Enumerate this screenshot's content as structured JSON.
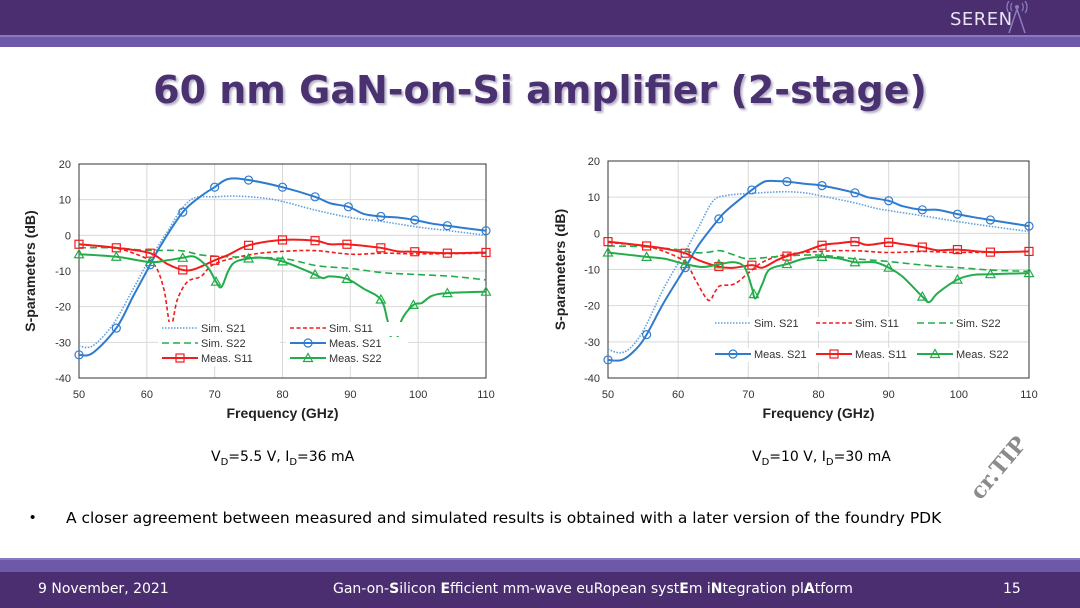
{
  "header": {
    "logo_text": "SEREN"
  },
  "title": "60 nm GaN-on-Si amplifier (2-stage)",
  "captions": [
    {
      "v": "V",
      "vsub": "D",
      "vval": "=5.5 V, I",
      "isub": "D",
      "ival": "=36 mA"
    },
    {
      "v": "V",
      "vsub": "D",
      "vval": "=10 V, I",
      "isub": "D",
      "ival": "=30 mA"
    }
  ],
  "bullet": "A closer agreement between measured and simulated results is obtained with a later version of the foundry PDK",
  "watermark": "cr.TIP",
  "footer": {
    "date": "9 November, 2021",
    "project_parts": [
      [
        "Gan-on-",
        false
      ],
      [
        "S",
        true
      ],
      [
        "ilicon ",
        false
      ],
      [
        "E",
        true
      ],
      [
        "fficient mm-wave euR",
        false
      ],
      [
        "opean syst",
        false
      ],
      [
        "E",
        true
      ],
      [
        "m i",
        false
      ],
      [
        "N",
        true
      ],
      [
        "tegration pl",
        false
      ],
      [
        "A",
        true
      ],
      [
        "tform",
        false
      ]
    ],
    "page": "15"
  },
  "colors": {
    "blue": "#2e7bcf",
    "blue_light": "#5fa0dc",
    "red": "#f21c1c",
    "green": "#22ad4a",
    "purple": "#4a2e6f"
  },
  "chart_data": [
    {
      "type": "line",
      "xlabel": "Frequency (GHz)",
      "ylabel": "S-parameters (dB)",
      "xlim": [
        50,
        110
      ],
      "ylim": [
        -40,
        20
      ],
      "xticks": [
        50,
        60,
        70,
        80,
        90,
        100,
        110
      ],
      "yticks": [
        20,
        10,
        0,
        -10,
        -20,
        -30,
        -40
      ],
      "grid": true,
      "legend_order": [
        "Sim. S21",
        "Sim. S11",
        "Sim. S22",
        "Meas. S21",
        "Meas. S11",
        "Meas. S22"
      ],
      "series": [
        {
          "name": "Sim. S21",
          "style": "dotted",
          "color": "#5fa0dc",
          "marker": null,
          "x": [
            50,
            52,
            55,
            58,
            60,
            63,
            65,
            67,
            70,
            73,
            77,
            80,
            85,
            90,
            95,
            100,
            105,
            110
          ],
          "y": [
            -31,
            -31,
            -25,
            -15,
            -8,
            1,
            7,
            10.5,
            10.8,
            11,
            10.5,
            9.5,
            7,
            5,
            3.8,
            2.3,
            1.2,
            0
          ]
        },
        {
          "name": "Sim. S11",
          "style": "dashed",
          "color": "#f21c1c",
          "marker": null,
          "x": [
            50,
            55,
            58,
            61,
            62.5,
            63.5,
            64.5,
            66,
            68,
            70,
            75,
            80,
            85,
            90,
            95,
            100,
            110
          ],
          "y": [
            -2.5,
            -3.5,
            -5,
            -8,
            -15,
            -25.5,
            -18,
            -13,
            -11.5,
            -8,
            -5.5,
            -4.5,
            -4.3,
            -5.3,
            -5,
            -5.2,
            -5
          ]
        },
        {
          "name": "Sim. S22",
          "style": "longdash",
          "color": "#22ad4a",
          "marker": null,
          "x": [
            50,
            55,
            60,
            65,
            68,
            72,
            80,
            85,
            90,
            95,
            100,
            105,
            110
          ],
          "y": [
            -3.5,
            -3.5,
            -4.2,
            -4.3,
            -5.5,
            -6,
            -6.5,
            -8.5,
            -9.3,
            -10.5,
            -11,
            -11.5,
            -12.5
          ]
        },
        {
          "name": "Meas. S21",
          "style": "solid",
          "color": "#2e7bcf",
          "marker": "circle",
          "x": [
            50,
            52,
            55.5,
            58,
            60,
            62,
            65.3,
            68,
            70,
            72,
            75,
            80,
            84.8,
            87,
            89.7,
            92,
            94.5,
            97,
            99.5,
            102,
            104.3,
            107,
            110
          ],
          "y": [
            -33.5,
            -33,
            -26,
            -17,
            -10,
            -3,
            6.5,
            11,
            13.5,
            15.8,
            15.5,
            13.5,
            10.8,
            9,
            8,
            6,
            5.3,
            5,
            4.3,
            3.3,
            2.7,
            2,
            1.3
          ],
          "markers_x": [
            50,
            55.5,
            60.5,
            65.3,
            70,
            75,
            80,
            84.8,
            89.7,
            94.5,
            99.5,
            104.3,
            110
          ]
        },
        {
          "name": "Meas. S11",
          "style": "solid",
          "color": "#f21c1c",
          "marker": "square",
          "x": [
            50,
            55.5,
            60.5,
            63,
            65.3,
            67,
            70,
            72,
            75,
            80,
            84.8,
            87,
            89.5,
            94.5,
            97,
            99.5,
            104.3,
            110
          ],
          "y": [
            -2.5,
            -3.5,
            -5,
            -8,
            -9.7,
            -9.5,
            -7,
            -5.5,
            -2.8,
            -1.3,
            -1.5,
            -2.5,
            -2.5,
            -3.5,
            -4.5,
            -4.6,
            -5,
            -4.8
          ],
          "markers_x": [
            50,
            55.5,
            60.5,
            65.3,
            70,
            75,
            80,
            84.8,
            89.5,
            94.5,
            99.5,
            104.3,
            110
          ]
        },
        {
          "name": "Meas. S22",
          "style": "solid",
          "color": "#22ad4a",
          "marker": "triangle",
          "x": [
            50,
            55.5,
            60.5,
            63,
            65.3,
            67,
            69,
            70.2,
            71,
            72,
            73,
            75,
            77,
            80,
            83,
            84.8,
            86,
            87,
            89.5,
            92,
            94.5,
            95.5,
            96.5,
            97.5,
            99.3,
            100.5,
            102,
            104.3,
            110
          ],
          "y": [
            -5.3,
            -6,
            -7.5,
            -7,
            -6.3,
            -6,
            -9,
            -13,
            -14.5,
            -10,
            -7.5,
            -6.5,
            -6.3,
            -7.3,
            -9.5,
            -11,
            -12,
            -11.5,
            -12.2,
            -15,
            -18,
            -24,
            -32,
            -24,
            -19.5,
            -19,
            -17,
            -16.2,
            -15.8
          ],
          "markers_x": [
            50,
            55.5,
            60.5,
            65.3,
            70.2,
            75,
            80,
            84.8,
            89.5,
            94.5,
            99.3,
            104.3,
            110
          ]
        }
      ]
    },
    {
      "type": "line",
      "xlabel": "Frequency (GHz)",
      "ylabel": "S-parameters (dB)",
      "xlim": [
        50,
        110
      ],
      "ylim": [
        -40,
        20
      ],
      "xticks": [
        50,
        60,
        70,
        80,
        90,
        100,
        110
      ],
      "yticks": [
        20,
        10,
        0,
        -10,
        -20,
        -30,
        -40
      ],
      "grid": true,
      "legend_order": [
        "Sim. S21",
        "Sim. S11",
        "Sim. S22",
        "Meas. S21",
        "Meas. S11",
        "Meas. S22"
      ],
      "series": [
        {
          "name": "Sim. S21",
          "style": "dotted",
          "color": "#5fa0dc",
          "marker": null,
          "x": [
            50,
            51.5,
            53,
            55,
            58,
            61,
            63,
            65,
            67,
            70,
            75,
            78,
            80,
            85,
            88,
            90,
            95,
            100,
            105,
            110
          ],
          "y": [
            -32,
            -33,
            -32,
            -27,
            -15,
            -5,
            2,
            9,
            10.5,
            11,
            11.5,
            11.2,
            10.5,
            8.5,
            7,
            6.3,
            4.8,
            3.2,
            1.8,
            0.5
          ]
        },
        {
          "name": "Sim. S11",
          "style": "dashed",
          "color": "#f21c1c",
          "marker": null,
          "x": [
            50,
            55,
            58,
            61,
            62.5,
            64.3,
            65.3,
            66,
            68,
            70,
            72,
            75,
            80,
            85,
            90,
            95,
            100,
            110
          ],
          "y": [
            -2.5,
            -3.5,
            -5,
            -8,
            -13,
            -18.5,
            -16,
            -14.5,
            -14,
            -11,
            -8,
            -6,
            -5,
            -4.8,
            -5.3,
            -5,
            -5.3,
            -5
          ]
        },
        {
          "name": "Sim. S22",
          "style": "longdash",
          "color": "#22ad4a",
          "marker": null,
          "x": [
            50,
            55,
            60,
            62,
            64,
            66,
            68,
            70,
            75,
            80,
            85,
            90,
            95,
            100,
            105,
            110
          ],
          "y": [
            -3.5,
            -3.7,
            -4.5,
            -5.3,
            -5.3,
            -4.8,
            -6,
            -7,
            -6.3,
            -6,
            -7,
            -7.8,
            -8.8,
            -9.5,
            -10.2,
            -10.5
          ]
        },
        {
          "name": "Meas. S21",
          "style": "solid",
          "color": "#2e7bcf",
          "marker": "circle",
          "x": [
            50,
            52,
            54,
            55.5,
            58,
            61,
            63,
            65.8,
            67,
            70.5,
            72,
            73,
            75.5,
            78,
            80.5,
            85.2,
            87,
            90,
            92,
            94.8,
            97,
            99.8,
            102,
            104.5,
            110
          ],
          "y": [
            -35,
            -35,
            -32,
            -28,
            -19,
            -9.5,
            -3,
            4,
            6.5,
            12,
            14,
            14.5,
            14.3,
            13.7,
            13.2,
            11.2,
            10,
            9,
            7.5,
            6.5,
            6.5,
            5.3,
            4.5,
            3.7,
            2
          ],
          "markers_x": [
            50,
            55.5,
            61,
            65.8,
            70.5,
            75.5,
            80.5,
            85.2,
            90,
            94.8,
            99.8,
            104.5,
            110
          ]
        },
        {
          "name": "Meas. S11",
          "style": "solid",
          "color": "#f21c1c",
          "marker": "square",
          "x": [
            50,
            55.5,
            58,
            61,
            63,
            66,
            68,
            70.5,
            72,
            74,
            75.5,
            78,
            80.5,
            83,
            85.2,
            87,
            90,
            92,
            94.8,
            97,
            99.8,
            104.5,
            110
          ],
          "y": [
            -2.3,
            -3.5,
            -4.2,
            -5.5,
            -7.5,
            -9.3,
            -9.5,
            -8.8,
            -9.5,
            -7.5,
            -6.3,
            -5,
            -3.3,
            -2.7,
            -2.3,
            -3.2,
            -2.5,
            -3,
            -3.8,
            -4.7,
            -4.5,
            -5.2,
            -5
          ],
          "markers_x": [
            50,
            55.5,
            61,
            65.8,
            70.5,
            75.5,
            80.5,
            85.2,
            90,
            94.8,
            99.8,
            104.5,
            110
          ]
        },
        {
          "name": "Meas. S22",
          "style": "solid",
          "color": "#22ad4a",
          "marker": "triangle",
          "x": [
            50,
            55.5,
            58,
            61,
            63.5,
            66,
            68,
            69.5,
            70.5,
            71,
            72,
            73,
            75.5,
            78,
            80.5,
            83,
            85.2,
            88,
            90,
            92,
            94.8,
            95.8,
            97,
            99.8,
            102,
            104.5,
            110
          ],
          "y": [
            -5.3,
            -6.5,
            -7,
            -8.5,
            -9.3,
            -8.5,
            -8,
            -9.5,
            -15,
            -18,
            -14,
            -10,
            -8.5,
            -7,
            -6.5,
            -7,
            -8,
            -8,
            -9.5,
            -12,
            -17.5,
            -19,
            -16.5,
            -12.8,
            -11.5,
            -11.3,
            -11
          ],
          "markers_x": [
            50,
            55.5,
            61,
            65.8,
            70.8,
            75.5,
            80.5,
            85.2,
            90,
            94.8,
            99.8,
            104.5,
            110
          ]
        }
      ]
    }
  ]
}
